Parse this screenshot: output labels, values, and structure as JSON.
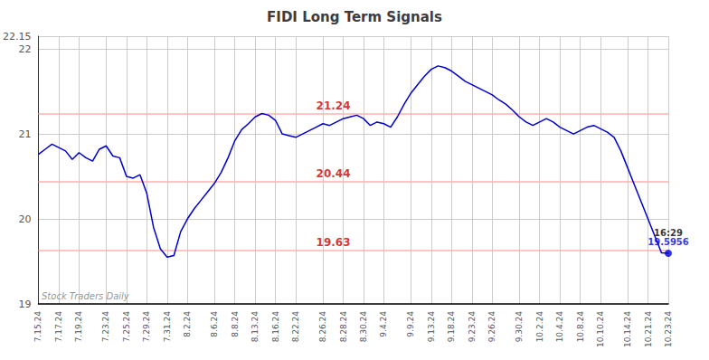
{
  "chart_data": {
    "type": "line",
    "title": "FIDI Long Term Signals",
    "categories": [
      "7.15.24",
      null,
      null,
      "7.17.24",
      null,
      null,
      "7.19.24",
      null,
      null,
      null,
      "7.23.24",
      null,
      null,
      "7.25.24",
      null,
      null,
      "7.29.24",
      null,
      null,
      "7.31.24",
      null,
      null,
      "8.2.24",
      null,
      null,
      null,
      "8.6.24",
      null,
      null,
      "8.8.24",
      null,
      null,
      "8.13.24",
      null,
      null,
      "8.16.24",
      null,
      null,
      "8.22.24",
      null,
      null,
      null,
      "8.26.24",
      null,
      null,
      "8.28.24",
      null,
      null,
      "8.30.24",
      null,
      null,
      "9.4.24",
      null,
      null,
      null,
      "9.9.24",
      null,
      null,
      "9.13.24",
      null,
      null,
      "9.18.24",
      null,
      null,
      "9.23.24",
      null,
      null,
      "9.26.24",
      null,
      null,
      null,
      "9.30.24",
      null,
      null,
      "10.2.24",
      null,
      null,
      "10.4.24",
      null,
      null,
      "10.8.24",
      null,
      null,
      "10.10.24",
      null,
      null,
      null,
      "10.14.24",
      null,
      null,
      "10.21.24",
      null,
      null,
      "10.23.24"
    ],
    "values": [
      20.76,
      20.82,
      20.88,
      20.84,
      20.8,
      20.7,
      20.78,
      20.72,
      20.68,
      20.82,
      20.86,
      20.74,
      20.72,
      20.5,
      20.48,
      20.52,
      20.3,
      19.9,
      19.65,
      19.55,
      19.57,
      19.85,
      20.0,
      20.12,
      20.22,
      20.32,
      20.42,
      20.55,
      20.72,
      20.92,
      21.05,
      21.12,
      21.2,
      21.24,
      21.22,
      21.16,
      21.0,
      20.98,
      20.96,
      21.0,
      21.04,
      21.08,
      21.12,
      21.1,
      21.14,
      21.18,
      21.2,
      21.22,
      21.18,
      21.1,
      21.14,
      21.12,
      21.08,
      21.2,
      21.35,
      21.48,
      21.58,
      21.68,
      21.76,
      21.8,
      21.78,
      21.74,
      21.68,
      21.62,
      21.58,
      21.54,
      21.5,
      21.46,
      21.4,
      21.35,
      21.28,
      21.2,
      21.14,
      21.1,
      21.14,
      21.18,
      21.14,
      21.08,
      21.04,
      21.0,
      21.04,
      21.08,
      21.1,
      21.06,
      21.02,
      20.96,
      20.8,
      20.6,
      20.4,
      20.2,
      20.0,
      19.8,
      19.6,
      19.5956
    ],
    "color": "#0000cc",
    "ylim": [
      19.0,
      22.15
    ],
    "yticks": [
      19,
      20,
      21,
      22
    ],
    "grid": true,
    "hlines": {
      "values": [
        19.63,
        20.44,
        21.24
      ],
      "labels": [
        "19.63",
        "20.44",
        "21.24"
      ],
      "color": "#ffb0b0",
      "label_color": "#cc0000"
    },
    "last_point": {
      "time": "16:29",
      "value": 19.5956,
      "label": "19.5956",
      "color": "#0000dd"
    },
    "watermark": "Stock Traders Daily"
  }
}
